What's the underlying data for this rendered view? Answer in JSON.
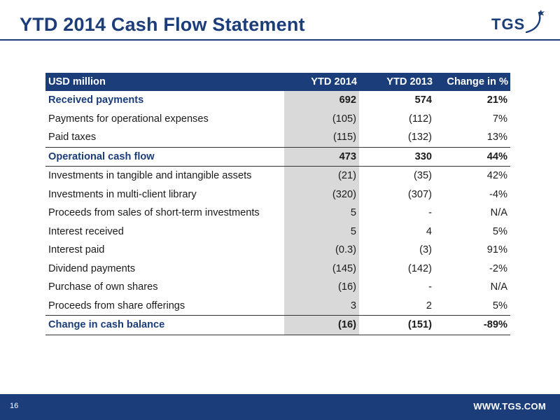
{
  "header": {
    "title": "YTD 2014 Cash Flow Statement",
    "logo_text": "TGS",
    "logo_icon": "tgs-swoosh-logo"
  },
  "table": {
    "columns": [
      "USD million",
      "YTD 2014",
      "YTD 2013",
      "Change in %"
    ],
    "rows": [
      {
        "label": "Received payments",
        "ytd2014": "692",
        "ytd2013": "574",
        "change": "21%"
      },
      {
        "label": "Payments for operational expenses",
        "ytd2014": "(105)",
        "ytd2013": "(112)",
        "change": "7%"
      },
      {
        "label": "Paid taxes",
        "ytd2014": "(115)",
        "ytd2013": "(132)",
        "change": "13%"
      },
      {
        "label": "Operational cash flow",
        "ytd2014": "473",
        "ytd2013": "330",
        "change": "44%"
      },
      {
        "label": "Investments in tangible and intangible assets",
        "ytd2014": "(21)",
        "ytd2013": "(35)",
        "change": "42%"
      },
      {
        "label": "Investments in multi-client library",
        "ytd2014": "(320)",
        "ytd2013": "(307)",
        "change": "-4%"
      },
      {
        "label": "Proceeds from sales of short-term investments",
        "ytd2014": "5",
        "ytd2013": "-",
        "change": "N/A"
      },
      {
        "label": "Interest received",
        "ytd2014": "5",
        "ytd2013": "4",
        "change": "5%"
      },
      {
        "label": "Interest paid",
        "ytd2014": "(0.3)",
        "ytd2013": "(3)",
        "change": "91%"
      },
      {
        "label": "Dividend payments",
        "ytd2014": "(145)",
        "ytd2013": "(142)",
        "change": "-2%"
      },
      {
        "label": "Purchase of own shares",
        "ytd2014": "(16)",
        "ytd2013": "-",
        "change": "N/A"
      },
      {
        "label": "Proceeds from share offerings",
        "ytd2014": "3",
        "ytd2013": "2",
        "change": "5%"
      },
      {
        "label": "Change in cash balance",
        "ytd2014": "(16)",
        "ytd2013": "(151)",
        "change": "-89%"
      }
    ]
  },
  "footer": {
    "page_number": "16",
    "url": "WWW.TGS.COM"
  },
  "colors": {
    "brand_navy": "#1b3d7a",
    "highlight_column": "#d9d9d9"
  }
}
